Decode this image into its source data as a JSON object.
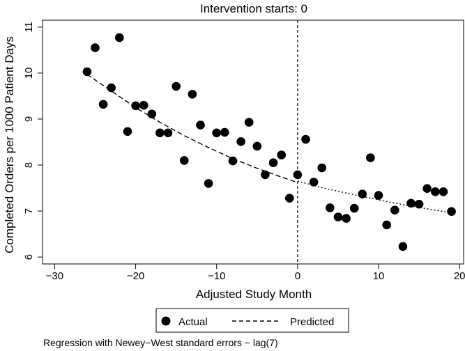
{
  "chart_data": {
    "type": "scatter",
    "title": "Intervention starts: 0",
    "xlabel": "Adjusted Study Month",
    "ylabel": "Completed Orders per 1000 Patient Days",
    "xlim": [
      -31.5,
      20.5
    ],
    "ylim": [
      5.85,
      11.15
    ],
    "x_ticks": [
      -30,
      -20,
      -10,
      0,
      10,
      20
    ],
    "x_tick_labels": [
      "−30",
      "−20",
      "−10",
      "0",
      "10",
      "20"
    ],
    "y_ticks": [
      6,
      7,
      8,
      9,
      10,
      11
    ],
    "y_tick_labels": [
      "6",
      "7",
      "8",
      "9",
      "10",
      "11"
    ],
    "grid": false,
    "legend_position": "bottom",
    "intervention_x": 0,
    "series": [
      {
        "name": "Actual",
        "kind": "points",
        "color": "#000000",
        "x": [
          -26,
          -25,
          -24,
          -23,
          -22,
          -21,
          -20,
          -19,
          -18,
          -17,
          -16,
          -15,
          -14,
          -13,
          -12,
          -11,
          -10,
          -9,
          -8,
          -7,
          -6,
          -5,
          -4,
          -3,
          -2,
          -1,
          0,
          1,
          2,
          3,
          4,
          5,
          6,
          7,
          8,
          9,
          10,
          11,
          12,
          13,
          14,
          15,
          16,
          17,
          18,
          19
        ],
        "y": [
          10.03,
          10.55,
          9.32,
          9.68,
          10.77,
          8.73,
          9.29,
          9.3,
          9.11,
          8.7,
          8.7,
          9.71,
          8.1,
          9.54,
          8.87,
          7.6,
          8.7,
          8.71,
          8.09,
          8.51,
          8.93,
          8.41,
          7.79,
          8.05,
          8.22,
          7.28,
          7.79,
          8.56,
          7.63,
          7.94,
          7.07,
          6.87,
          6.84,
          7.06,
          7.37,
          8.16,
          7.34,
          6.7,
          7.02,
          6.23,
          7.17,
          7.15,
          7.49,
          7.42,
          7.42,
          6.99
        ]
      },
      {
        "name": "Predicted",
        "kind": "line",
        "dash": "dashed",
        "color": "#000000",
        "x": [
          -26,
          -23,
          -20,
          -17,
          -14,
          -11,
          -8,
          -5,
          -2,
          0
        ],
        "y": [
          9.97,
          9.61,
          9.25,
          8.93,
          8.64,
          8.38,
          8.14,
          7.93,
          7.74,
          7.62
        ]
      },
      {
        "name": "",
        "kind": "line",
        "dash": "dotted",
        "color": "#000000",
        "x": [
          0,
          3,
          6,
          9,
          12,
          15,
          19
        ],
        "y": [
          7.65,
          7.51,
          7.39,
          7.28,
          7.17,
          7.08,
          6.96
        ]
      }
    ]
  },
  "legend": {
    "actual_label": "Actual",
    "predicted_label": "Predicted"
  },
  "footnote": "Regression with Newey−West standard errors − lag(7)"
}
